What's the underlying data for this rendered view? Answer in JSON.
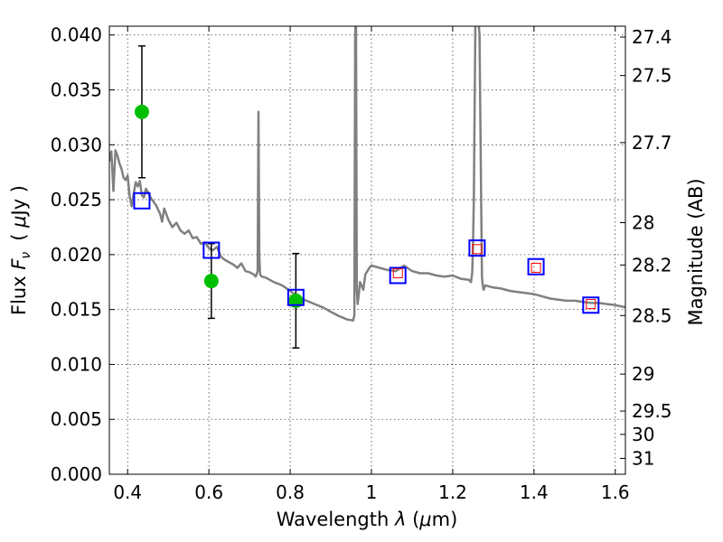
{
  "chart_data": {
    "type": "line",
    "xlabel_prefix": "Wavelength ",
    "xlabel_lambda": "λ",
    "xlabel_unit_open": " (",
    "xlabel_mu": "μ",
    "xlabel_unit_close": "m)",
    "ylabel_prefix": "Flux ",
    "ylabel_F": "F",
    "ylabel_nu": "ν",
    "ylabel_unit_open": "( ",
    "ylabel_mu": "μ",
    "ylabel_unit_close": "Jy )",
    "ylabel_right": "Magnitude (AB)",
    "xlim": [
      0.355,
      1.625
    ],
    "ylim": [
      0.0,
      0.0408
    ],
    "x_ticks": [
      0.4,
      0.6,
      0.8,
      1.0,
      1.2,
      1.4,
      1.6
    ],
    "x_tick_labels": [
      "0.4",
      "0.6",
      "0.8",
      "1",
      "1.2",
      "1.4",
      "1.6"
    ],
    "y_ticks": [
      0.0,
      0.005,
      0.01,
      0.015,
      0.02,
      0.025,
      0.03,
      0.035,
      0.04
    ],
    "y_tick_labels": [
      "0.000",
      "0.005",
      "0.010",
      "0.015",
      "0.020",
      "0.025",
      "0.030",
      "0.035",
      "0.040"
    ],
    "right_ticks": [
      27.4,
      27.5,
      27.7,
      28,
      28.2,
      28.5,
      29,
      29.5,
      30,
      31
    ],
    "right_tick_labels": [
      "27.4",
      "27.5",
      "27.7",
      "28",
      "28.2",
      "28.5",
      "29",
      "29.5",
      "30",
      "31"
    ],
    "grid": true,
    "colors": {
      "sed": "#808080",
      "observed": "#00bf00",
      "model_box": "#0000ff",
      "model_inner": "#ff0000",
      "errorbar": "#000000"
    },
    "series": [
      {
        "name": "model SED",
        "kind": "line",
        "x": [
          0.355,
          0.36,
          0.365,
          0.37,
          0.375,
          0.38,
          0.385,
          0.39,
          0.395,
          0.4,
          0.405,
          0.41,
          0.415,
          0.42,
          0.425,
          0.43,
          0.435,
          0.44,
          0.445,
          0.45,
          0.455,
          0.46,
          0.47,
          0.48,
          0.485,
          0.49,
          0.5,
          0.51,
          0.52,
          0.53,
          0.54,
          0.55,
          0.56,
          0.57,
          0.58,
          0.59,
          0.6,
          0.61,
          0.62,
          0.63,
          0.64,
          0.65,
          0.66,
          0.67,
          0.68,
          0.69,
          0.7,
          0.71,
          0.715,
          0.72,
          0.722,
          0.724,
          0.726,
          0.73,
          0.74,
          0.75,
          0.76,
          0.78,
          0.8,
          0.82,
          0.84,
          0.86,
          0.88,
          0.9,
          0.92,
          0.94,
          0.955,
          0.958,
          0.96,
          0.962,
          0.964,
          0.966,
          0.968,
          0.972,
          0.98,
          0.985,
          0.99,
          0.995,
          1.0,
          1.02,
          1.04,
          1.06,
          1.08,
          1.1,
          1.12,
          1.14,
          1.16,
          1.18,
          1.2,
          1.22,
          1.24,
          1.245,
          1.248,
          1.25,
          1.252,
          1.256,
          1.262,
          1.266,
          1.27,
          1.272,
          1.274,
          1.276,
          1.28,
          1.3,
          1.32,
          1.34,
          1.36,
          1.38,
          1.4,
          1.42,
          1.44,
          1.46,
          1.48,
          1.5,
          1.52,
          1.54,
          1.56,
          1.58,
          1.6,
          1.625
        ],
        "y": [
          0.0285,
          0.0294,
          0.0258,
          0.0295,
          0.029,
          0.0283,
          0.0278,
          0.027,
          0.0268,
          0.0272,
          0.0253,
          0.0244,
          0.0256,
          0.0266,
          0.0262,
          0.0267,
          0.0254,
          0.0252,
          0.026,
          0.0257,
          0.0253,
          0.025,
          0.0245,
          0.0237,
          0.023,
          0.0242,
          0.0232,
          0.0225,
          0.0229,
          0.0222,
          0.0219,
          0.0222,
          0.0215,
          0.0216,
          0.021,
          0.0211,
          0.0206,
          0.0204,
          0.0207,
          0.0198,
          0.0195,
          0.0193,
          0.0191,
          0.0188,
          0.0192,
          0.0185,
          0.0184,
          0.0182,
          0.018,
          0.0185,
          0.033,
          0.02,
          0.0182,
          0.018,
          0.0179,
          0.0177,
          0.0175,
          0.0172,
          0.0167,
          0.0161,
          0.0158,
          0.0155,
          0.0152,
          0.0148,
          0.0144,
          0.0141,
          0.014,
          0.0145,
          0.04,
          0.042,
          0.0168,
          0.0155,
          0.0161,
          0.0175,
          0.0168,
          0.0182,
          0.0185,
          0.0188,
          0.019,
          0.0188,
          0.0186,
          0.0185,
          0.019,
          0.0185,
          0.0183,
          0.0183,
          0.0181,
          0.018,
          0.0181,
          0.0178,
          0.0177,
          0.0175,
          0.0183,
          0.021,
          0.025,
          0.042,
          0.042,
          0.04,
          0.025,
          0.018,
          0.0172,
          0.0168,
          0.0172,
          0.017,
          0.0169,
          0.0167,
          0.0166,
          0.0165,
          0.0164,
          0.0162,
          0.016,
          0.0159,
          0.0158,
          0.0158,
          0.0157,
          0.0156,
          0.0156,
          0.0155,
          0.0154,
          0.0152
        ]
      },
      {
        "name": "observed photometry",
        "kind": "errorbar",
        "points": [
          {
            "x": 0.435,
            "y": 0.033,
            "err_low": 0.006,
            "err_high": 0.006
          },
          {
            "x": 0.606,
            "y": 0.0176,
            "err_low": 0.0034,
            "err_high": 0.0034
          },
          {
            "x": 0.814,
            "y": 0.0158,
            "err_low": 0.0043,
            "err_high": 0.0043
          }
        ]
      },
      {
        "name": "model photometry",
        "kind": "squares",
        "points": [
          {
            "x": 0.435,
            "y": 0.0249
          },
          {
            "x": 0.606,
            "y": 0.0204
          },
          {
            "x": 0.814,
            "y": 0.0161
          },
          {
            "x": 1.065,
            "y": 0.0181
          },
          {
            "x": 1.26,
            "y": 0.0206
          },
          {
            "x": 1.405,
            "y": 0.0189
          },
          {
            "x": 1.54,
            "y": 0.0154
          }
        ]
      },
      {
        "name": "model photometry (inner)",
        "kind": "small-squares",
        "points": [
          {
            "x": 1.065,
            "y": 0.0183
          },
          {
            "x": 1.26,
            "y": 0.0205
          },
          {
            "x": 1.405,
            "y": 0.0188
          },
          {
            "x": 1.54,
            "y": 0.0155
          }
        ]
      }
    ]
  }
}
